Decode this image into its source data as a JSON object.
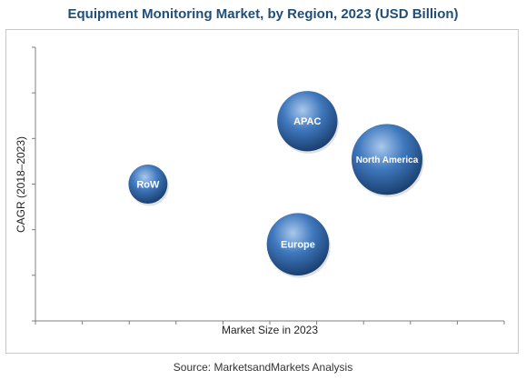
{
  "title": "Equipment Monitoring Market, by Region, 2023 (USD Billion)",
  "source": "Source: MarketsandMarkets Analysis",
  "chart_data": {
    "type": "scatter",
    "title": "Equipment Monitoring Market, by Region, 2023 (USD Billion)",
    "xlabel": "Market Size in 2023",
    "ylabel": "CAGR (2018–2023)",
    "x_ticks_labeled": false,
    "y_ticks_labeled": false,
    "grid": false,
    "points": [
      {
        "label": "APAC",
        "x": 0.58,
        "y": 0.73,
        "size": 0.85
      },
      {
        "label": "North America",
        "x": 0.75,
        "y": 0.59,
        "size": 1.0
      },
      {
        "label": "RoW",
        "x": 0.24,
        "y": 0.5,
        "size": 0.55
      },
      {
        "label": "Europe",
        "x": 0.56,
        "y": 0.28,
        "size": 0.88
      }
    ]
  },
  "colors": {
    "bubble_light": "#a9c8ec",
    "bubble_mid": "#3f78bd",
    "bubble_dark": "#173a68",
    "title": "#1f4e79",
    "axis": "#7f7f7f"
  }
}
